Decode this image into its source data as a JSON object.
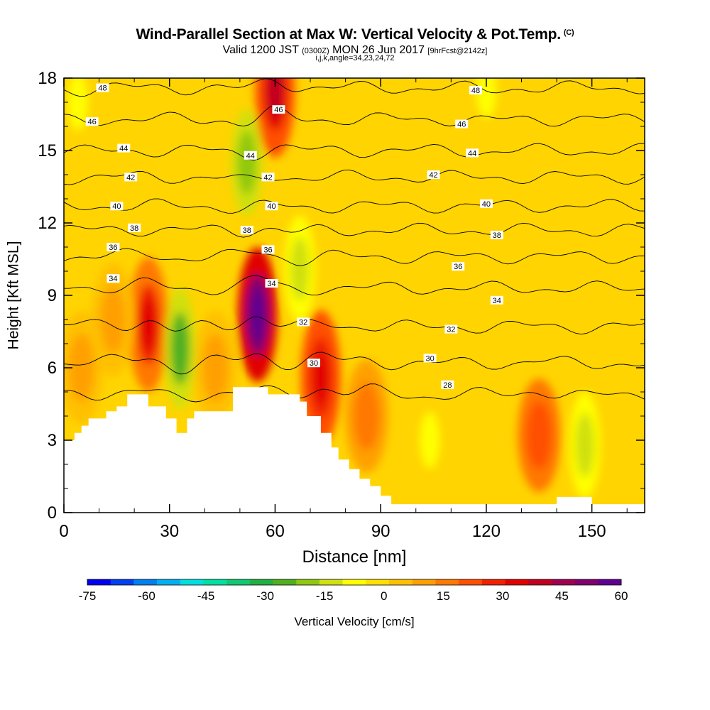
{
  "header": {
    "title": "Wind-Parallel Section at Max W: Vertical Velocity & Pot.Temp.",
    "copyright": "(C)",
    "valid_prefix": "Valid 1200 JST",
    "valid_utc": "(0300Z)",
    "valid_date": "MON 26 Jun 2017",
    "forecast": "[9hrFcst@2142z]",
    "grid_info": "i,j,k,angle=34,23,24,72"
  },
  "chart_data": {
    "type": "heatmap",
    "xlabel": "Distance [nm]",
    "ylabel": "Height [Kft MSL]",
    "xlim": [
      0,
      165
    ],
    "ylim": [
      0,
      18
    ],
    "x_ticks": [
      0,
      30,
      60,
      90,
      120,
      150
    ],
    "y_ticks": [
      0,
      3,
      6,
      9,
      12,
      15,
      18
    ],
    "colorbar": {
      "label": "Vertical Velocity [cm/s]",
      "range": [
        -75,
        60
      ],
      "tick_labels": [
        "-75",
        "-60",
        "-45",
        "-30",
        "-15",
        "0",
        "15",
        "30",
        "45",
        "60"
      ],
      "colors": [
        "#0000f0",
        "#0040f0",
        "#0080f0",
        "#00b0f0",
        "#00e0e0",
        "#00e0a0",
        "#10c870",
        "#20b040",
        "#50b020",
        "#90c810",
        "#d0e010",
        "#ffff00",
        "#ffe000",
        "#ffc000",
        "#ffa000",
        "#ff7800",
        "#ff5000",
        "#f02000",
        "#e00000",
        "#c00020",
        "#a00050",
        "#800070",
        "#600090"
      ]
    },
    "theta_contours": [
      {
        "value": 28,
        "y": 4.9
      },
      {
        "value": 30,
        "y": 6.2
      },
      {
        "value": 32,
        "y": 7.7
      },
      {
        "value": 34,
        "y": 9.3
      },
      {
        "value": 36,
        "y": 10.6
      },
      {
        "value": 38,
        "y": 11.7
      },
      {
        "value": 40,
        "y": 12.7
      },
      {
        "value": 42,
        "y": 13.9
      },
      {
        "value": 44,
        "y": 15.0
      },
      {
        "value": 46,
        "y": 16.3
      },
      {
        "value": 48,
        "y": 17.6
      }
    ],
    "contour_labels": [
      {
        "text": "48",
        "x": 11,
        "y": 17.6
      },
      {
        "text": "46",
        "x": 8,
        "y": 16.2
      },
      {
        "text": "44",
        "x": 17,
        "y": 15.1
      },
      {
        "text": "42",
        "x": 19,
        "y": 13.9
      },
      {
        "text": "40",
        "x": 15,
        "y": 12.7
      },
      {
        "text": "38",
        "x": 20,
        "y": 11.8
      },
      {
        "text": "36",
        "x": 14,
        "y": 11.0
      },
      {
        "text": "34",
        "x": 14,
        "y": 9.7
      },
      {
        "text": "48",
        "x": 117,
        "y": 17.5
      },
      {
        "text": "46",
        "x": 61,
        "y": 16.7
      },
      {
        "text": "46",
        "x": 113,
        "y": 16.1
      },
      {
        "text": "44",
        "x": 53,
        "y": 14.8
      },
      {
        "text": "44",
        "x": 116,
        "y": 14.9
      },
      {
        "text": "42",
        "x": 58,
        "y": 13.9
      },
      {
        "text": "42",
        "x": 105,
        "y": 14.0
      },
      {
        "text": "40",
        "x": 59,
        "y": 12.7
      },
      {
        "text": "40",
        "x": 120,
        "y": 12.8
      },
      {
        "text": "38",
        "x": 52,
        "y": 11.7
      },
      {
        "text": "38",
        "x": 123,
        "y": 11.5
      },
      {
        "text": "36",
        "x": 58,
        "y": 10.9
      },
      {
        "text": "36",
        "x": 112,
        "y": 10.2
      },
      {
        "text": "34",
        "x": 59,
        "y": 9.5
      },
      {
        "text": "34",
        "x": 123,
        "y": 8.8
      },
      {
        "text": "32",
        "x": 68,
        "y": 7.9
      },
      {
        "text": "32",
        "x": 110,
        "y": 7.6
      },
      {
        "text": "30",
        "x": 71,
        "y": 6.2
      },
      {
        "text": "30",
        "x": 104,
        "y": 6.4
      },
      {
        "text": "28",
        "x": 109,
        "y": 5.3
      }
    ],
    "terrain": [
      [
        0,
        3.0
      ],
      [
        3,
        3.0
      ],
      [
        3,
        3.3
      ],
      [
        5,
        3.3
      ],
      [
        5,
        3.6
      ],
      [
        7,
        3.6
      ],
      [
        7,
        3.9
      ],
      [
        12,
        3.9
      ],
      [
        12,
        4.2
      ],
      [
        15,
        4.2
      ],
      [
        15,
        4.4
      ],
      [
        18,
        4.4
      ],
      [
        18,
        4.9
      ],
      [
        24,
        4.9
      ],
      [
        24,
        4.4
      ],
      [
        29,
        4.4
      ],
      [
        29,
        3.9
      ],
      [
        32,
        3.9
      ],
      [
        32,
        3.3
      ],
      [
        35,
        3.3
      ],
      [
        35,
        3.9
      ],
      [
        37,
        3.9
      ],
      [
        37,
        4.2
      ],
      [
        48,
        4.2
      ],
      [
        48,
        5.2
      ],
      [
        58,
        5.2
      ],
      [
        58,
        4.9
      ],
      [
        67,
        4.9
      ],
      [
        67,
        4.6
      ],
      [
        69,
        4.6
      ],
      [
        69,
        4.0
      ],
      [
        73,
        4.0
      ],
      [
        73,
        3.3
      ],
      [
        76,
        3.3
      ],
      [
        76,
        2.7
      ],
      [
        78,
        2.7
      ],
      [
        78,
        2.2
      ],
      [
        81,
        2.2
      ],
      [
        81,
        1.8
      ],
      [
        84,
        1.8
      ],
      [
        84,
        1.4
      ],
      [
        87,
        1.4
      ],
      [
        87,
        1.1
      ],
      [
        90,
        1.1
      ],
      [
        90,
        0.7
      ],
      [
        93,
        0.7
      ],
      [
        93,
        0.35
      ],
      [
        140,
        0.35
      ],
      [
        140,
        0.65
      ],
      [
        150,
        0.65
      ],
      [
        150,
        0.35
      ],
      [
        165,
        0.35
      ]
    ],
    "updraft_cells": [
      {
        "x": 24,
        "y": 7.8,
        "w": 34,
        "kind": "strong-up"
      },
      {
        "x": 55,
        "y": 8.2,
        "w": 60,
        "kind": "strong-up"
      },
      {
        "x": 73,
        "y": 5.6,
        "w": 35,
        "kind": "strong-up"
      },
      {
        "x": 60,
        "y": 17.5,
        "w": 40,
        "kind": "strong-up"
      },
      {
        "x": 86,
        "y": 4.0,
        "w": 22,
        "kind": "up"
      },
      {
        "x": 135,
        "y": 3.2,
        "w": 26,
        "kind": "up"
      },
      {
        "x": 5,
        "y": 6.0,
        "w": 12,
        "kind": "up"
      },
      {
        "x": 14,
        "y": 8.0,
        "w": 10,
        "kind": "up"
      },
      {
        "x": 43,
        "y": 6.0,
        "w": 10,
        "kind": "up"
      }
    ],
    "downdraft_cells": [
      {
        "x": 33,
        "y": 6.8,
        "w": -28,
        "kind": "strong-down"
      },
      {
        "x": 52,
        "y": 14.5,
        "w": -25,
        "kind": "down"
      },
      {
        "x": 67,
        "y": 10.1,
        "w": -18,
        "kind": "down"
      },
      {
        "x": 148,
        "y": 2.8,
        "w": -18,
        "kind": "down"
      },
      {
        "x": 104,
        "y": 3.0,
        "w": -10,
        "kind": "weak-down"
      },
      {
        "x": 120,
        "y": 17.5,
        "w": -10,
        "kind": "weak-down"
      },
      {
        "x": 4,
        "y": 17.0,
        "w": -10,
        "kind": "weak-down"
      }
    ]
  }
}
